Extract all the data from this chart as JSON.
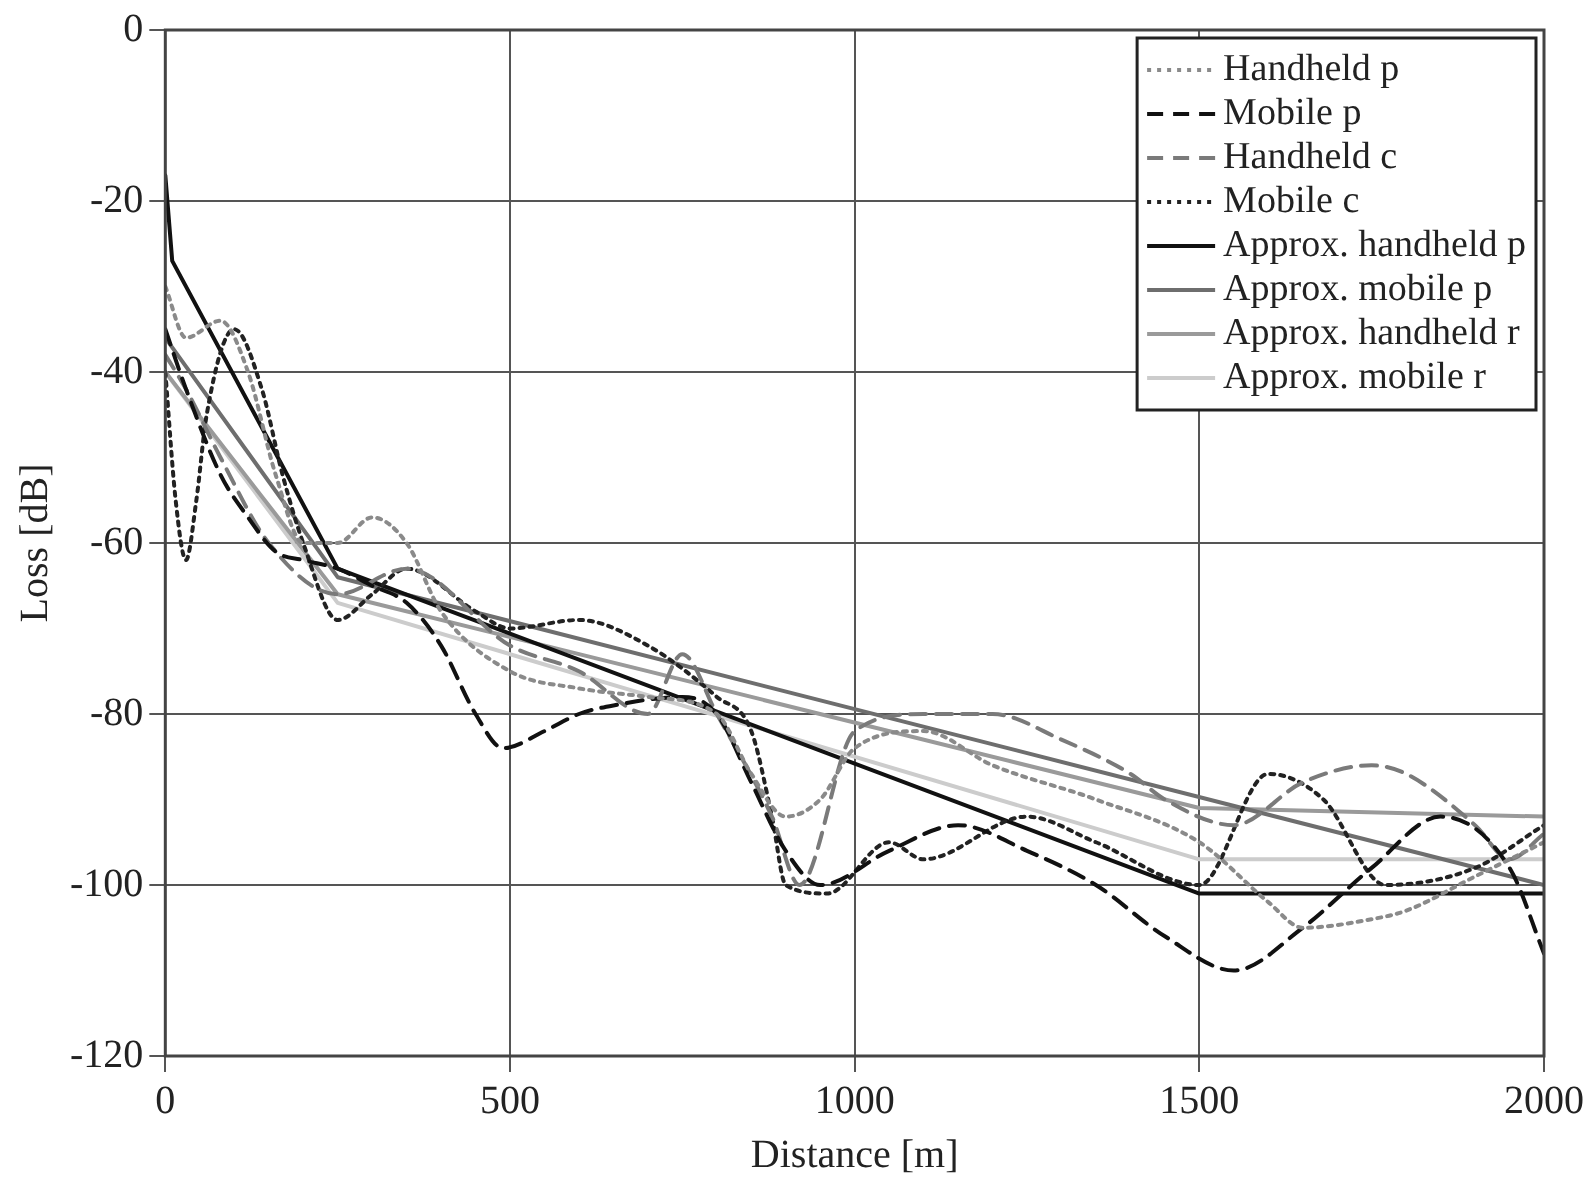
{
  "chart_data": {
    "type": "line",
    "xlabel": "Distance [m]",
    "ylabel": "Loss [dB]",
    "xlim": [
      0,
      2000
    ],
    "ylim": [
      -120,
      0
    ],
    "xticks": [
      0,
      500,
      1000,
      1500,
      2000
    ],
    "yticks": [
      -120,
      -100,
      -80,
      -60,
      -40,
      -20,
      0
    ],
    "grid": true,
    "legend": "top right",
    "marker": "none",
    "series": [
      {
        "name": "Handheld p",
        "color": "#8a8a8a",
        "line_style": "dotted",
        "x": [
          0,
          30,
          80,
          120,
          160,
          200,
          250,
          300,
          350,
          400,
          500,
          600,
          700,
          800,
          850,
          900,
          950,
          1000,
          1100,
          1200,
          1350,
          1500,
          1600,
          1650,
          1750,
          1800,
          1900,
          2000
        ],
        "values": [
          -30,
          -36,
          -34,
          -40,
          -52,
          -60,
          -60,
          -57,
          -60,
          -68,
          -75,
          -77,
          -78,
          -80,
          -87,
          -92,
          -90,
          -84,
          -82,
          -86,
          -90,
          -95,
          -102,
          -105,
          -104,
          -103,
          -99,
          -95
        ]
      },
      {
        "name": "Mobile p",
        "color": "#111111",
        "line_style": "dashed",
        "x": [
          0,
          30,
          80,
          120,
          160,
          200,
          250,
          300,
          350,
          400,
          450,
          490,
          550,
          600,
          650,
          750,
          800,
          850,
          900,
          950,
          1050,
          1150,
          1250,
          1350,
          1450,
          1550,
          1650,
          1750,
          1850,
          1950,
          2000
        ],
        "values": [
          -35,
          -42,
          -52,
          -57,
          -61,
          -62,
          -63,
          -65,
          -67,
          -72,
          -80,
          -84,
          -82,
          -80,
          -79,
          -78,
          -80,
          -88,
          -96,
          -100,
          -96,
          -93,
          -96,
          -100,
          -106,
          -110,
          -105,
          -98,
          -92,
          -98,
          -108
        ]
      },
      {
        "name": "Handheld c",
        "color": "#7a7a7a",
        "line_style": "dashed",
        "x": [
          0,
          30,
          80,
          150,
          250,
          350,
          500,
          600,
          700,
          750,
          800,
          880,
          920,
          1000,
          1100,
          1200,
          1300,
          1400,
          1450,
          1550,
          1650,
          1750,
          1800,
          1900,
          1950,
          2000
        ],
        "values": [
          -38,
          -42,
          -50,
          -60,
          -66,
          -63,
          -72,
          -75,
          -80,
          -73,
          -80,
          -92,
          -100,
          -82,
          -80,
          -80,
          -83,
          -87,
          -90,
          -93,
          -88,
          -86,
          -87,
          -93,
          -97,
          -94
        ]
      },
      {
        "name": "Mobile c",
        "color": "#222222",
        "line_style": "dotted",
        "x": [
          0,
          15,
          30,
          45,
          60,
          100,
          140,
          170,
          200,
          250,
          300,
          350,
          450,
          500,
          600,
          700,
          800,
          850,
          880,
          900,
          960,
          1050,
          1100,
          1250,
          1350,
          1500,
          1600,
          1680,
          1770,
          1900,
          2000
        ],
        "values": [
          -40,
          -55,
          -62,
          -55,
          -45,
          -35,
          -42,
          -52,
          -60,
          -69,
          -66,
          -63,
          -68,
          -70,
          -69,
          -72,
          -78,
          -82,
          -92,
          -100,
          -101,
          -95,
          -97,
          -92,
          -95,
          -100,
          -87,
          -90,
          -100,
          -98,
          -93
        ]
      },
      {
        "name": "Approx. handheld p",
        "color": "#111111",
        "line_style": "solid",
        "x": [
          0,
          10,
          250,
          1500,
          2000
        ],
        "values": [
          -17,
          -27,
          -63,
          -101,
          -101
        ]
      },
      {
        "name": "Approx. mobile p",
        "color": "#6e6e6e",
        "line_style": "solid",
        "x": [
          0,
          250,
          2000
        ],
        "values": [
          -36,
          -64,
          -100
        ]
      },
      {
        "name": "Approx. handheld r",
        "color": "#9a9a9a",
        "line_style": "solid",
        "x": [
          0,
          250,
          1500,
          2000
        ],
        "values": [
          -40,
          -66,
          -91,
          -92
        ]
      },
      {
        "name": "Approx. mobile r",
        "color": "#cccccc",
        "line_style": "solid",
        "x": [
          0,
          250,
          1500,
          2000
        ],
        "values": [
          -40,
          -67,
          -97,
          -97
        ]
      }
    ]
  }
}
